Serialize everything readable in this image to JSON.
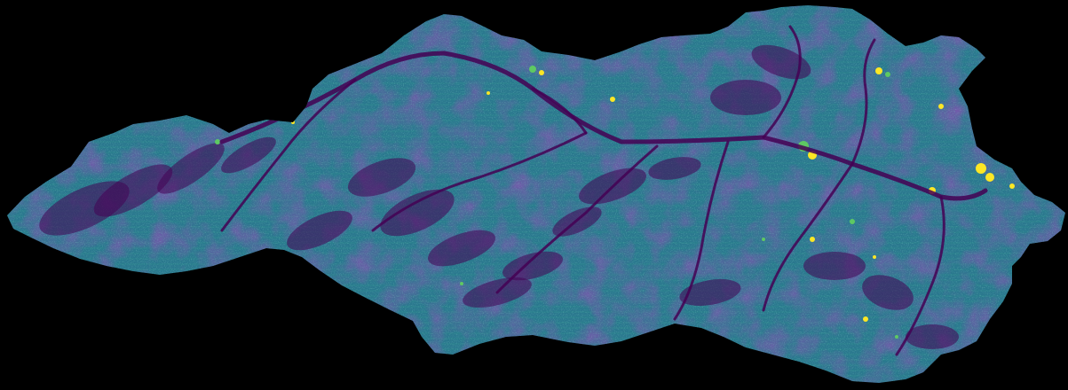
{
  "map": {
    "background": "#000000",
    "colormap": "viridis",
    "palette": [
      "#440154",
      "#3b528b",
      "#21918c",
      "#5ec962",
      "#fde725"
    ],
    "visible_text": []
  }
}
